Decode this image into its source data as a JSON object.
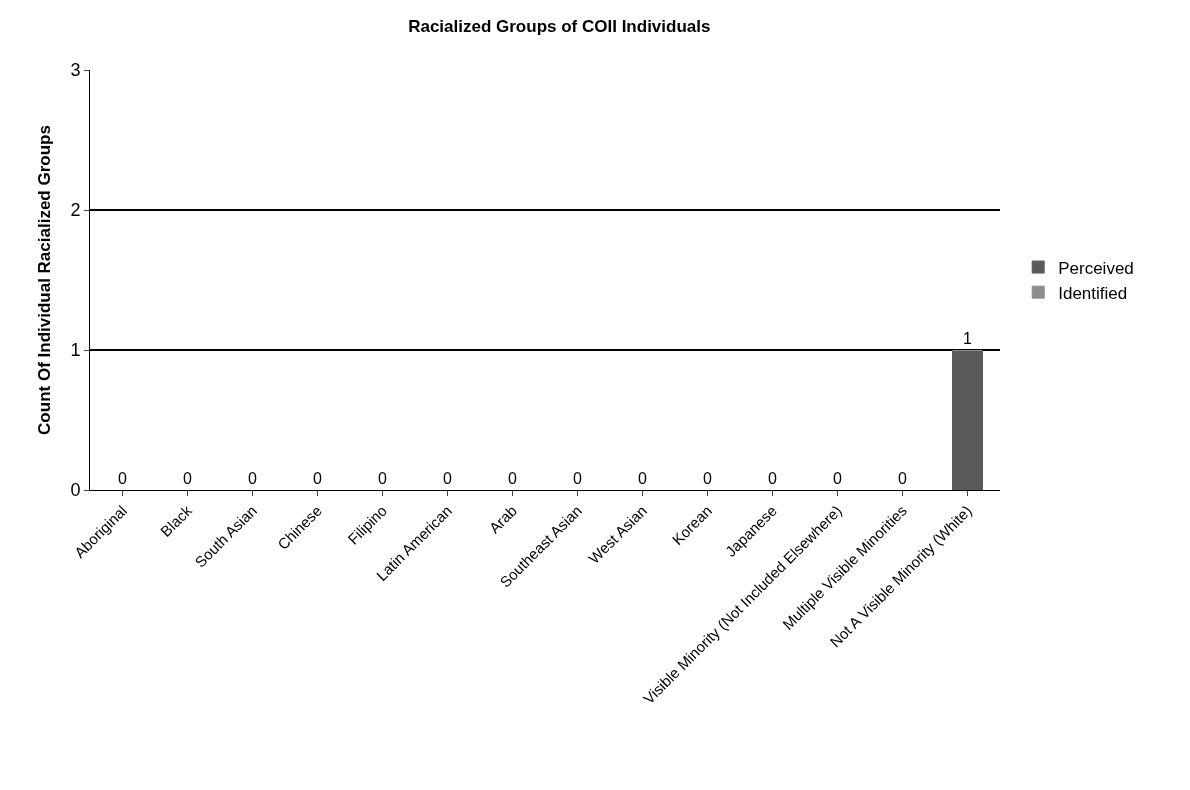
{
  "chart_data": {
    "type": "bar",
    "title": "Racialized Groups of COII Individuals",
    "ylabel": "Count Of Individual Racialized Groups",
    "categories": [
      "Aboriginal",
      "Black",
      "South Asian",
      "Chinese",
      "Filipino",
      "Latin American",
      "Arab",
      "Southeast Asian",
      "West Asian",
      "Korean",
      "Japanese",
      "Visible Minority (Not Included Elsewhere)",
      "Multiple Visible Minorities",
      "Not A Visible Minority (White)"
    ],
    "series": [
      {
        "name": "Perceived",
        "color": "#5a5a5a",
        "values": [
          0,
          0,
          0,
          0,
          0,
          0,
          0,
          0,
          0,
          0,
          0,
          0,
          0,
          1
        ],
        "value_labels": [
          "0",
          "0",
          "0",
          "0",
          "0",
          "0",
          "0",
          "0",
          "0",
          "0",
          "0",
          "0",
          "0",
          "1"
        ]
      },
      {
        "name": "Identified",
        "color": "#8c8c8c",
        "values": [
          0,
          0,
          0,
          0,
          0,
          0,
          0,
          0,
          0,
          0,
          0,
          0,
          0,
          0
        ]
      }
    ],
    "stacked": true,
    "ylim": [
      0,
      3
    ],
    "yticks": [
      0,
      1,
      2,
      3
    ],
    "grid": "y",
    "legend": "right"
  }
}
